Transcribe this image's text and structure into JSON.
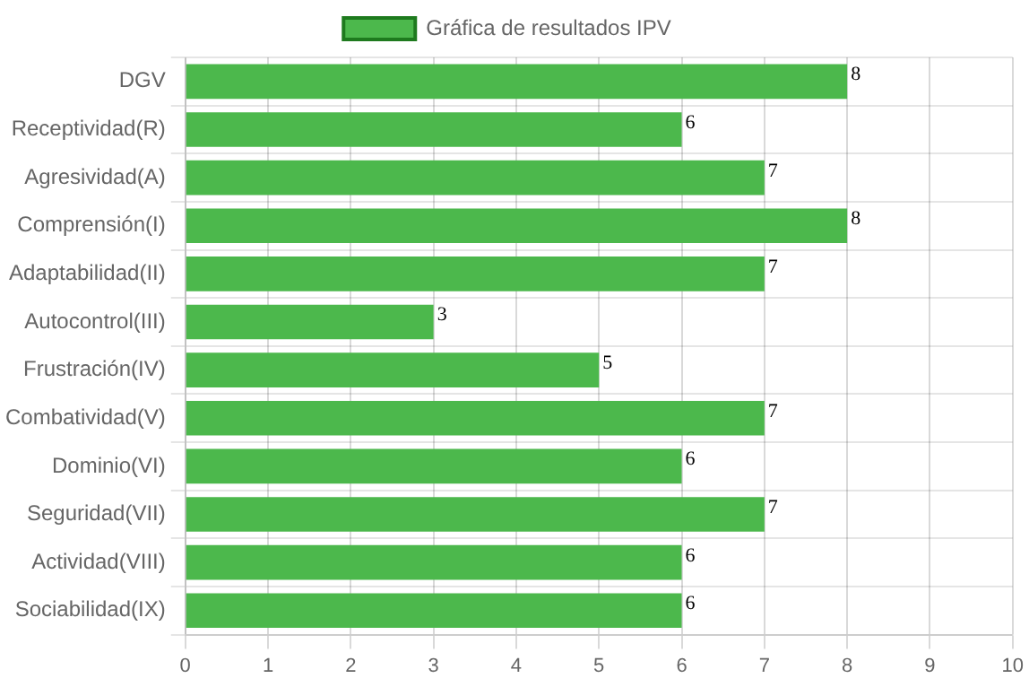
{
  "chart_data": {
    "type": "bar",
    "orientation": "horizontal",
    "categories": [
      "DGV",
      "Receptividad(R)",
      "Agresividad(A)",
      "Comprensión(I)",
      "Adaptabilidad(II)",
      "Autocontrol(III)",
      "Frustración(IV)",
      "Combatividad(V)",
      "Dominio(VI)",
      "Seguridad(VII)",
      "Actividad(VIII)",
      "Sociabilidad(IX)"
    ],
    "series": [
      {
        "name": "Gráfica de resultados IPV",
        "color": "#4cb84c",
        "values": [
          8,
          6,
          7,
          8,
          7,
          3,
          5,
          7,
          6,
          7,
          6,
          6
        ]
      }
    ],
    "xlim": [
      0,
      10
    ],
    "xticks": [
      0,
      1,
      2,
      3,
      4,
      5,
      6,
      7,
      8,
      9,
      10
    ],
    "grid": true,
    "legend": "top",
    "data_labels": true
  }
}
